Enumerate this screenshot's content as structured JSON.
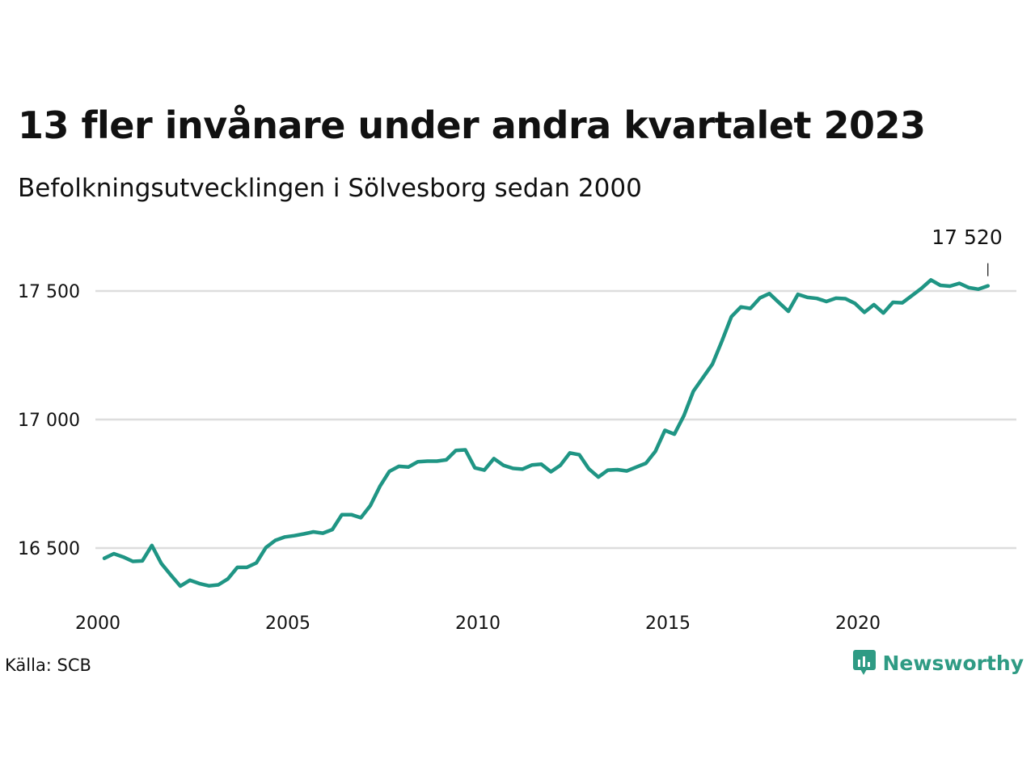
{
  "header": {
    "title": "13 fler invånare under andra kvartalet 2023",
    "subtitle": "Befolkningsutvecklingen i Sölvesborg sedan 2000"
  },
  "footer": {
    "source": "Källa: SCB",
    "brand_name": "Newsworthy",
    "brand_icon": "newsworthy-logo-icon",
    "brand_color": "#2f9b84"
  },
  "chart_data": {
    "type": "line",
    "title": "13 fler invånare under andra kvartalet 2023",
    "subtitle": "Befolkningsutvecklingen i Sölvesborg sedan 2000",
    "xlabel": "",
    "ylabel": "",
    "xlim": [
      2000,
      2024
    ],
    "ylim": [
      16300,
      17600
    ],
    "x_ticks": [
      2000,
      2005,
      2010,
      2015,
      2020
    ],
    "x_tick_labels": [
      "2000",
      "2005",
      "2010",
      "2015",
      "2020"
    ],
    "y_ticks": [
      16500,
      17000,
      17500
    ],
    "y_tick_labels": [
      "16 500",
      "17 000",
      "17 500"
    ],
    "grid": "horizontal",
    "line_color": "#1f9584",
    "end_label": "17 520",
    "x": [
      2000.0,
      2000.25,
      2000.5,
      2000.75,
      2001.0,
      2001.25,
      2001.5,
      2001.75,
      2002.0,
      2002.25,
      2002.5,
      2002.75,
      2003.0,
      2003.25,
      2003.5,
      2003.75,
      2004.0,
      2004.25,
      2004.5,
      2004.75,
      2005.0,
      2005.25,
      2005.5,
      2005.75,
      2006.0,
      2006.25,
      2006.5,
      2006.75,
      2007.0,
      2007.25,
      2007.5,
      2007.75,
      2008.0,
      2008.25,
      2008.5,
      2008.75,
      2009.0,
      2009.25,
      2009.5,
      2009.75,
      2010.0,
      2010.25,
      2010.5,
      2010.75,
      2011.0,
      2011.25,
      2011.5,
      2011.75,
      2012.0,
      2012.25,
      2012.5,
      2012.75,
      2013.0,
      2013.25,
      2013.5,
      2013.75,
      2014.0,
      2014.25,
      2014.5,
      2014.75,
      2015.0,
      2015.25,
      2015.5,
      2015.75,
      2016.0,
      2016.25,
      2016.5,
      2016.75,
      2017.0,
      2017.25,
      2017.5,
      2017.75,
      2018.0,
      2018.25,
      2018.5,
      2018.75,
      2019.0,
      2019.25,
      2019.5,
      2019.75,
      2020.0,
      2020.25,
      2020.5,
      2020.75,
      2021.0,
      2021.25,
      2021.5,
      2021.75,
      2022.0,
      2022.25,
      2022.5,
      2022.75,
      2023.0,
      2023.25
    ],
    "series": [
      {
        "values": [
          16460,
          16478,
          16465,
          16448,
          16450,
          16510,
          16440,
          16395,
          16352,
          16375,
          16362,
          16353,
          16357,
          16380,
          16425,
          16425,
          16442,
          16502,
          16530,
          16543,
          16548,
          16555,
          16563,
          16558,
          16572,
          16630,
          16630,
          16618,
          16665,
          16740,
          16798,
          16818,
          16815,
          16836,
          16838,
          16838,
          16843,
          16880,
          16882,
          16812,
          16803,
          16848,
          16822,
          16810,
          16807,
          16823,
          16826,
          16797,
          16822,
          16870,
          16863,
          16808,
          16776,
          16803,
          16805,
          16800,
          16815,
          16830,
          16876,
          16958,
          16943,
          17015,
          17110,
          17163,
          17215,
          17305,
          17400,
          17438,
          17432,
          17473,
          17490,
          17455,
          17421,
          17487,
          17475,
          17471,
          17459,
          17472,
          17470,
          17452,
          17417,
          17447,
          17414,
          17456,
          17454,
          17482,
          17510,
          17543,
          17522,
          17519,
          17530,
          17513,
          17507,
          17520
        ]
      }
    ]
  }
}
